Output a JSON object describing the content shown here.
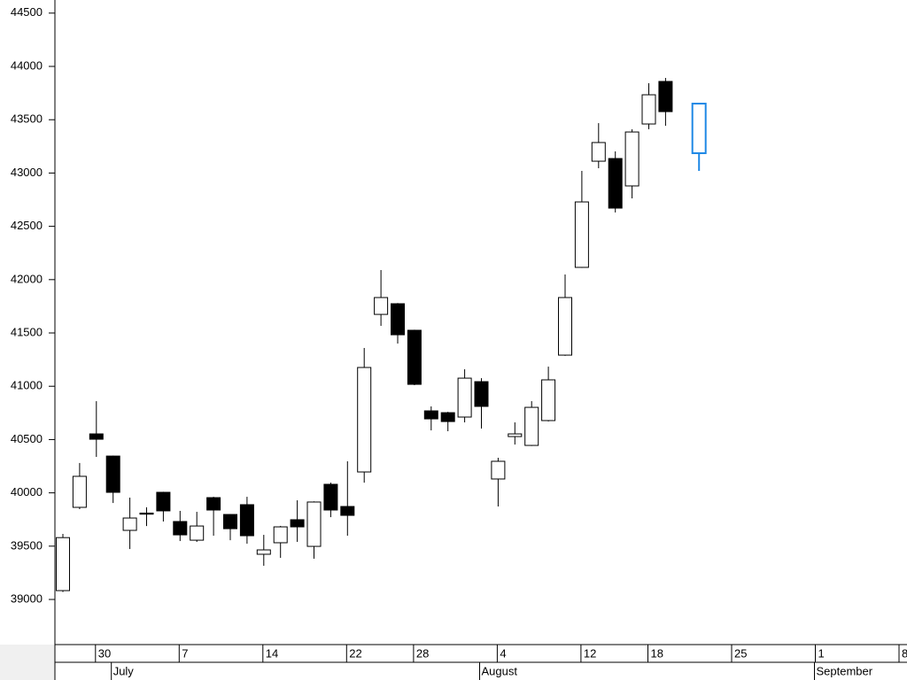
{
  "chart_data": {
    "type": "candlestick",
    "x": [
      "June 26",
      "June 27",
      "June 30",
      "July 1",
      "July 2",
      "July 3",
      "July 4",
      "July 7",
      "July 8",
      "July 9",
      "July 10",
      "July 11",
      "July 14",
      "July 15",
      "July 16",
      "July 17",
      "July 18",
      "July 22",
      "July 23",
      "July 24",
      "July 25",
      "July 28",
      "July 29",
      "July 30",
      "July 31",
      "August 1",
      "August 4",
      "August 5",
      "August 6",
      "August 7",
      "August 8",
      "August 12",
      "August 13",
      "August 14",
      "August 15",
      "August 18",
      "August 19",
      "August 20",
      "August 21",
      "August 22",
      "August 25",
      "August 26",
      "August 27",
      "August 28",
      "August 29",
      "September 1",
      "September 2",
      "September 3",
      "September 4",
      "September 5",
      "September 8"
    ],
    "series": [
      {
        "color": "#000000",
        "open": [
          39083,
          39864,
          40553,
          40345,
          39648,
          39810,
          40005,
          39731,
          39556,
          39955,
          39797,
          39889,
          39424,
          39532,
          39748,
          39498,
          40080,
          39872,
          40196,
          41674,
          41774,
          41525,
          40769,
          40752,
          40711,
          41043,
          40130,
          40528,
          40445,
          40678,
          41292,
          42115,
          43111,
          43136,
          42879,
          43460,
          43859,
          null,
          null,
          null,
          null,
          null,
          null,
          null,
          null,
          null,
          null,
          null,
          null,
          null,
          null
        ],
        "high": [
          39615,
          40280,
          40860,
          40350,
          39955,
          39864,
          40010,
          39831,
          39822,
          39963,
          39800,
          39963,
          39606,
          39690,
          39930,
          39920,
          40096,
          40296,
          41359,
          42090,
          41780,
          41530,
          40811,
          40760,
          41159,
          41076,
          40329,
          40661,
          40860,
          41184,
          42048,
          43020,
          43468,
          43203,
          43410,
          43842,
          43892,
          null,
          null,
          null,
          null,
          null,
          null,
          null,
          null,
          null,
          null,
          null,
          null,
          null,
          null
        ],
        "low": [
          39070,
          39847,
          40337,
          39905,
          39473,
          39689,
          39731,
          39548,
          39540,
          39598,
          39556,
          39523,
          39316,
          39390,
          39540,
          39382,
          39772,
          39598,
          40096,
          41566,
          41400,
          41010,
          40586,
          40578,
          40661,
          40603,
          39872,
          40453,
          40440,
          40670,
          41285,
          42110,
          43045,
          42630,
          42762,
          43410,
          43443,
          null,
          null,
          null,
          null,
          null,
          null,
          null,
          null,
          null,
          null,
          null,
          null,
          null,
          null
        ],
        "close": [
          39580,
          40155,
          40503,
          40005,
          39764,
          39800,
          39831,
          39606,
          39689,
          39839,
          39664,
          39598,
          39465,
          39681,
          39681,
          39914,
          39839,
          39789,
          41176,
          41832,
          41483,
          41018,
          40694,
          40669,
          41076,
          40811,
          40296,
          40553,
          40802,
          41060,
          41832,
          42729,
          43286,
          42671,
          43385,
          43734,
          43576,
          null,
          null,
          null,
          null,
          null,
          null,
          null,
          null,
          null,
          null,
          null,
          null,
          null,
          null
        ]
      },
      {
        "color": "#1e88e5",
        "open": [
          null,
          null,
          null,
          null,
          null,
          null,
          null,
          null,
          null,
          null,
          null,
          null,
          null,
          null,
          null,
          null,
          null,
          null,
          null,
          null,
          null,
          null,
          null,
          null,
          null,
          null,
          null,
          null,
          null,
          null,
          null,
          null,
          null,
          null,
          null,
          null,
          null,
          null,
          43186,
          null,
          null,
          null,
          null,
          null,
          null,
          null,
          null,
          null,
          null,
          null,
          null
        ],
        "high": [
          null,
          null,
          null,
          null,
          null,
          null,
          null,
          null,
          null,
          null,
          null,
          null,
          null,
          null,
          null,
          null,
          null,
          null,
          null,
          null,
          null,
          null,
          null,
          null,
          null,
          null,
          null,
          null,
          null,
          null,
          null,
          null,
          null,
          null,
          null,
          null,
          null,
          null,
          43651,
          null,
          null,
          null,
          null,
          null,
          null,
          null,
          null,
          null,
          null,
          null,
          null
        ],
        "low": [
          null,
          null,
          null,
          null,
          null,
          null,
          null,
          null,
          null,
          null,
          null,
          null,
          null,
          null,
          null,
          null,
          null,
          null,
          null,
          null,
          null,
          null,
          null,
          null,
          null,
          null,
          null,
          null,
          null,
          null,
          null,
          null,
          null,
          null,
          null,
          null,
          null,
          null,
          43020,
          null,
          null,
          null,
          null,
          null,
          null,
          null,
          null,
          null,
          null,
          null,
          null
        ],
        "close": [
          null,
          null,
          null,
          null,
          null,
          null,
          null,
          null,
          null,
          null,
          null,
          null,
          null,
          null,
          null,
          null,
          null,
          null,
          null,
          null,
          null,
          null,
          null,
          null,
          null,
          null,
          null,
          null,
          null,
          null,
          null,
          null,
          null,
          null,
          null,
          null,
          null,
          null,
          43651,
          null,
          null,
          null,
          null,
          null,
          null,
          null,
          null,
          null,
          null,
          null,
          null
        ]
      }
    ],
    "ylim": [
      38585,
      44623
    ],
    "yticks": [
      39000,
      39500,
      40000,
      40500,
      41000,
      41500,
      42000,
      42500,
      43000,
      43500,
      44000,
      44500
    ],
    "xticks": [
      {
        "value": "June 30",
        "label": "30"
      },
      {
        "value": "July 7",
        "label": "7"
      },
      {
        "value": "July 14",
        "label": "14"
      },
      {
        "value": "July 22",
        "label": "22"
      },
      {
        "value": "July 28",
        "label": "28"
      },
      {
        "value": "August 4",
        "label": "4"
      },
      {
        "value": "August 12",
        "label": "12"
      },
      {
        "value": "August 18",
        "label": "18"
      },
      {
        "value": "August 25",
        "label": "25"
      },
      {
        "value": "September 1",
        "label": "1"
      },
      {
        "value": "September 8",
        "label": "8"
      }
    ],
    "month_ticks": [
      {
        "value": "July 1",
        "label": "July"
      },
      {
        "value": "August 1",
        "label": "August"
      },
      {
        "value": "September 1",
        "label": "September"
      }
    ]
  }
}
